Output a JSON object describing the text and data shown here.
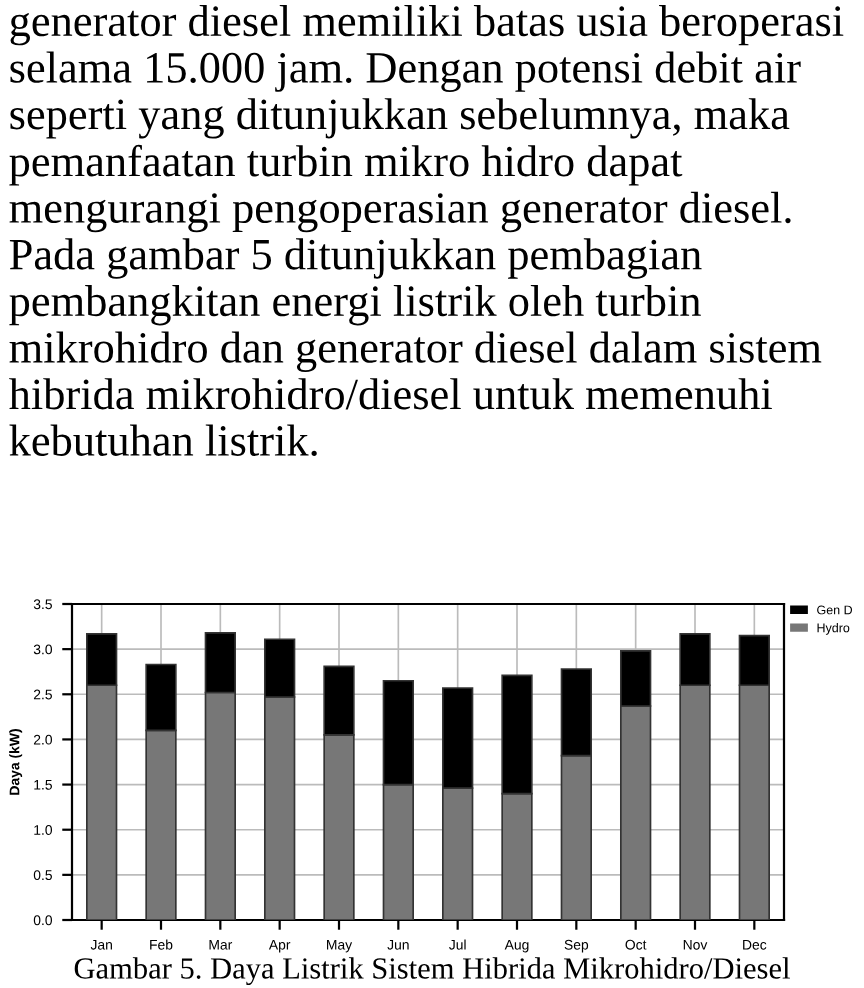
{
  "chart_data": {
    "type": "bar",
    "stacked": true,
    "ylabel": "Daya (kW)",
    "categories": [
      "Jan",
      "Feb",
      "Mar",
      "Apr",
      "May",
      "Jun",
      "Jul",
      "Aug",
      "Sep",
      "Oct",
      "Nov",
      "Dec"
    ],
    "series": [
      {
        "name": "Hydro",
        "color": "#777777",
        "values": [
          2.6,
          2.1,
          2.52,
          2.47,
          2.05,
          1.5,
          1.46,
          1.4,
          1.82,
          2.37,
          2.6,
          2.6
        ]
      },
      {
        "name": "Gen D",
        "color": "#000000",
        "values": [
          0.57,
          0.73,
          0.66,
          0.64,
          0.76,
          1.15,
          1.11,
          1.31,
          0.96,
          0.61,
          0.57,
          0.55
        ]
      }
    ],
    "ylim": [
      0,
      3.5
    ],
    "yticks": [
      {
        "value": 0,
        "label": "0.0"
      },
      {
        "value": 0.5,
        "label": "0.5"
      },
      {
        "value": 1,
        "label": "1.0"
      },
      {
        "value": 1.5,
        "label": "1.5"
      },
      {
        "value": 2,
        "label": "2.0"
      },
      {
        "value": 2.5,
        "label": "2.5"
      },
      {
        "value": 3,
        "label": "3.0"
      },
      {
        "value": 3.5,
        "label": "3.5"
      }
    ],
    "grid": true,
    "legend": "top right",
    "annotations": [
      "generator diesel memiliki batas usia beroperasi selama 15.000 jam. Dengan potensi debit air seperti yang ditunjukkan sebelumnya, maka pemanfaatan turbin mikro hidro dapat mengurangi pengoperasian generator diesel. Pada gambar 5 ditunjukkan pembagian pembangkitan energi listrik oleh turbin mikrohidro dan generator diesel dalam sistem hibrida mikrohidro/diesel untuk memenuhi kebutuhan listrik.",
      "Gambar 5. Daya Listrik Sistem Hibrida Mikrohidro/Diesel"
    ]
  }
}
